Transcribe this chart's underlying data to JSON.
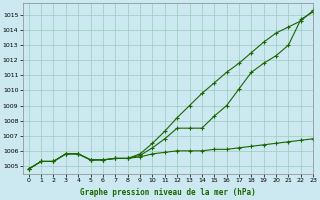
{
  "title": "Graphe pression niveau de la mer (hPa)",
  "bg_color": "#cce8f0",
  "grid_color": "#99ccbb",
  "line_color": "#1a6600",
  "marker_color": "#1a6600",
  "xlim": [
    -0.5,
    23
  ],
  "ylim": [
    1004.5,
    1015.8
  ],
  "yticks": [
    1005,
    1006,
    1007,
    1008,
    1009,
    1010,
    1011,
    1012,
    1013,
    1014,
    1015
  ],
  "xticks": [
    0,
    1,
    2,
    3,
    4,
    5,
    6,
    7,
    8,
    9,
    10,
    11,
    12,
    13,
    14,
    15,
    16,
    17,
    18,
    19,
    20,
    21,
    22,
    23
  ],
  "series1_x": [
    0,
    1,
    2,
    3,
    4,
    5,
    6,
    7,
    8,
    9,
    10,
    11,
    12,
    13,
    14,
    15,
    16,
    17,
    18,
    19,
    20,
    21,
    22,
    23
  ],
  "series1_y": [
    1004.8,
    1005.3,
    1005.3,
    1005.8,
    1005.8,
    1005.4,
    1005.4,
    1005.5,
    1005.5,
    1005.6,
    1005.8,
    1005.9,
    1006.0,
    1006.0,
    1006.0,
    1006.1,
    1006.1,
    1006.2,
    1006.3,
    1006.4,
    1006.5,
    1006.6,
    1006.7,
    1006.8
  ],
  "series2_x": [
    0,
    1,
    2,
    3,
    4,
    5,
    6,
    7,
    8,
    9,
    10,
    11,
    12,
    13,
    14,
    15,
    16,
    17,
    18,
    19,
    20,
    21,
    22,
    23
  ],
  "series2_y": [
    1004.8,
    1005.3,
    1005.3,
    1005.8,
    1005.8,
    1005.4,
    1005.4,
    1005.5,
    1005.5,
    1005.7,
    1006.2,
    1006.8,
    1007.5,
    1007.5,
    1007.5,
    1008.3,
    1009.0,
    1010.1,
    1011.2,
    1011.8,
    1012.3,
    1013.0,
    1014.7,
    1015.2
  ],
  "series3_x": [
    0,
    1,
    2,
    3,
    4,
    5,
    6,
    7,
    8,
    9,
    10,
    11,
    12,
    13,
    14,
    15,
    16,
    17,
    18,
    19,
    20,
    21,
    22,
    23
  ],
  "series3_y": [
    1004.8,
    1005.3,
    1005.3,
    1005.8,
    1005.8,
    1005.4,
    1005.4,
    1005.5,
    1005.5,
    1005.8,
    1006.5,
    1007.3,
    1008.2,
    1009.0,
    1009.8,
    1010.5,
    1011.2,
    1011.8,
    1012.5,
    1013.2,
    1013.8,
    1014.2,
    1014.6,
    1015.3
  ]
}
